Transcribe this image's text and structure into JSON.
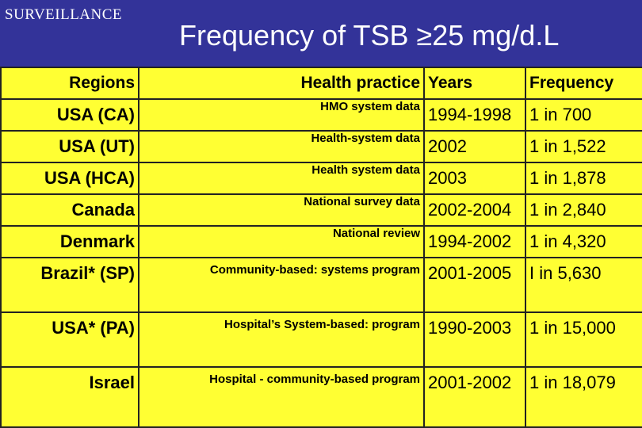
{
  "header": {
    "section_label": "SURVEILLANCE",
    "title": "Frequency of TSB ≥25 mg/d.L"
  },
  "table": {
    "columns": [
      "Regions",
      "Health practice",
      "Years",
      "Frequency"
    ],
    "rows": [
      {
        "region": "USA (CA)",
        "practice": "HMO system data",
        "years": "1994-1998",
        "frequency": "1 in 700"
      },
      {
        "region": "USA (UT)",
        "practice": "Health-system data",
        "years": "2002",
        "frequency": "1 in 1,522"
      },
      {
        "region": "USA (HCA)",
        "practice": "Health system data",
        "years": "2003",
        "frequency": "1 in 1,878"
      },
      {
        "region": "Canada",
        "practice": "National survey data",
        "years": "2002-2004",
        "frequency": "1 in 2,840"
      },
      {
        "region": "Denmark",
        "practice": "National  review",
        "years": "1994-2002",
        "frequency": "1 in 4,320"
      },
      {
        "region": "Brazil* (SP)",
        "practice": "Community-based: systems program",
        "years": "2001-2005",
        "frequency": "I in 5,630"
      },
      {
        "region": "USA* (PA)",
        "practice": "Hospital’s System-based: program",
        "years": "1990-2003",
        "frequency": "1 in 15,000"
      },
      {
        "region": "Israel",
        "practice": "Hospital - community-based program",
        "years": "2001-2002",
        "frequency": "1 in 18,079"
      }
    ]
  },
  "colors": {
    "background": "#333399",
    "table_fill": "#ffff33",
    "grid": "#222222"
  }
}
